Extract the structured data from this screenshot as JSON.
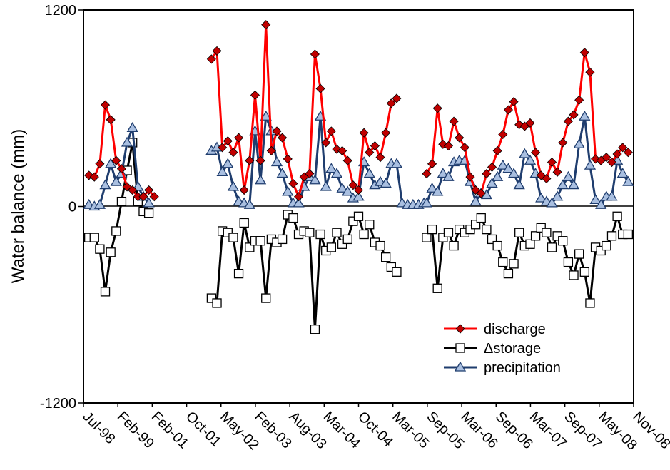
{
  "chart_data": {
    "type": "line",
    "ylabel": "Water balance (mm)",
    "ylim": [
      -1200,
      1200
    ],
    "yticks": [
      "1200",
      "0",
      "-1200"
    ],
    "xticks": [
      "Jul-98",
      "Feb-99",
      "Feb-01",
      "Oct-01",
      "May-02",
      "Feb-03",
      "Aug-03",
      "Mar-04",
      "Oct-04",
      "Mar-05",
      "Sep-05",
      "Mar-06",
      "Sep-06",
      "Mar-07",
      "Sep-07",
      "May-08",
      "Nov-08"
    ],
    "legend_position": "bottom-right",
    "colors": {
      "discharge": "#ff0000",
      "storage": "#000000",
      "precipitation": "#1f3d6e",
      "precip_fill": "#a9bfe0",
      "discharge_fill": "#c00000"
    },
    "series": [
      {
        "name": "discharge",
        "segments": [
          [
            [
              1.0,
              190
            ],
            [
              2.0,
              180
            ],
            [
              3.0,
              260
            ],
            [
              4.0,
              620
            ],
            [
              5.0,
              530
            ],
            [
              6.0,
              280
            ],
            [
              7.0,
              230
            ],
            [
              8.0,
              120
            ],
            [
              9.0,
              100
            ],
            [
              10.0,
              60
            ],
            [
              11.0,
              60
            ],
            [
              12.0,
              100
            ],
            [
              13.0,
              60
            ]
          ],
          [
            [
              23.5,
              900
            ],
            [
              24.5,
              950
            ],
            [
              25.5,
              360
            ],
            [
              26.5,
              400
            ],
            [
              27.5,
              330
            ],
            [
              28.5,
              420
            ],
            [
              29.5,
              100
            ],
            [
              30.5,
              280
            ],
            [
              31.5,
              680
            ],
            [
              32.5,
              280
            ],
            [
              33.5,
              1110
            ],
            [
              34.5,
              340
            ],
            [
              35.5,
              460
            ],
            [
              36.5,
              420
            ],
            [
              37.5,
              290
            ],
            [
              38.5,
              140
            ],
            [
              39.5,
              60
            ],
            [
              40.5,
              180
            ],
            [
              41.5,
              200
            ],
            [
              42.5,
              930
            ],
            [
              43.5,
              720
            ],
            [
              44.5,
              390
            ],
            [
              45.5,
              460
            ],
            [
              46.5,
              350
            ],
            [
              47.5,
              340
            ],
            [
              48.5,
              280
            ],
            [
              49.5,
              130
            ],
            [
              50.5,
              100
            ],
            [
              51.5,
              450
            ],
            [
              52.5,
              330
            ],
            [
              53.5,
              370
            ],
            [
              54.5,
              300
            ],
            [
              55.5,
              450
            ],
            [
              56.5,
              630
            ],
            [
              57.5,
              660
            ]
          ],
          [
            [
              63.0,
              200
            ],
            [
              64.0,
              260
            ],
            [
              65.0,
              600
            ],
            [
              66.0,
              380
            ],
            [
              67.0,
              370
            ],
            [
              68.0,
              520
            ],
            [
              69.0,
              420
            ],
            [
              70.0,
              360
            ],
            [
              71.0,
              180
            ],
            [
              72.0,
              100
            ],
            [
              73.0,
              80
            ],
            [
              74.0,
              200
            ],
            [
              75.0,
              240
            ],
            [
              76.0,
              340
            ],
            [
              77.0,
              440
            ],
            [
              78.0,
              590
            ],
            [
              79.0,
              640
            ],
            [
              80.0,
              500
            ],
            [
              81.0,
              490
            ],
            [
              82.0,
              510
            ],
            [
              83.0,
              330
            ],
            [
              84.0,
              190
            ],
            [
              85.0,
              170
            ],
            [
              86.0,
              270
            ],
            [
              87.0,
              210
            ],
            [
              88.0,
              390
            ],
            [
              89.0,
              520
            ],
            [
              90.0,
              560
            ],
            [
              91.0,
              650
            ],
            [
              92.0,
              940
            ],
            [
              93.0,
              820
            ],
            [
              94.0,
              290
            ],
            [
              95.0,
              280
            ],
            [
              96.0,
              300
            ],
            [
              97.0,
              270
            ],
            [
              98.0,
              320
            ],
            [
              99.0,
              360
            ],
            [
              100.0,
              330
            ]
          ]
        ]
      },
      {
        "name": "Δstorage",
        "segments": [
          [
            [
              1.0,
              -190
            ],
            [
              2.0,
              -190
            ],
            [
              3.0,
              -260
            ],
            [
              4.0,
              -520
            ],
            [
              5.0,
              -280
            ],
            [
              6.0,
              -150
            ],
            [
              7.0,
              30
            ],
            [
              8.0,
              220
            ],
            [
              9.0,
              390
            ],
            [
              10.0,
              30
            ],
            [
              11.0,
              -30
            ],
            [
              12.0,
              -40
            ]
          ],
          [
            [
              23.5,
              -560
            ],
            [
              24.5,
              -590
            ],
            [
              25.5,
              -150
            ],
            [
              26.5,
              -160
            ],
            [
              27.5,
              -190
            ],
            [
              28.5,
              -410
            ],
            [
              29.5,
              -100
            ],
            [
              30.5,
              -250
            ],
            [
              31.5,
              -210
            ],
            [
              32.5,
              -210
            ],
            [
              33.5,
              -560
            ],
            [
              34.5,
              -200
            ],
            [
              35.5,
              -220
            ],
            [
              36.5,
              -200
            ],
            [
              37.5,
              -50
            ],
            [
              38.5,
              -70
            ],
            [
              39.5,
              -170
            ],
            [
              40.5,
              -150
            ],
            [
              41.5,
              -160
            ],
            [
              42.5,
              -750
            ],
            [
              43.5,
              -170
            ],
            [
              44.5,
              -270
            ],
            [
              45.5,
              -250
            ],
            [
              46.5,
              -160
            ],
            [
              47.5,
              -230
            ],
            [
              48.5,
              -200
            ],
            [
              49.5,
              -90
            ],
            [
              50.5,
              -60
            ],
            [
              51.5,
              -170
            ],
            [
              52.5,
              -110
            ],
            [
              53.5,
              -220
            ],
            [
              54.5,
              -240
            ],
            [
              55.5,
              -310
            ],
            [
              56.5,
              -370
            ],
            [
              57.5,
              -400
            ]
          ],
          [
            [
              63.0,
              -190
            ],
            [
              64.0,
              -140
            ],
            [
              65.0,
              -500
            ],
            [
              66.0,
              -190
            ],
            [
              67.0,
              -160
            ],
            [
              68.0,
              -240
            ],
            [
              69.0,
              -140
            ],
            [
              70.0,
              -160
            ],
            [
              71.0,
              -140
            ],
            [
              72.0,
              -110
            ],
            [
              73.0,
              -70
            ],
            [
              74.0,
              -140
            ],
            [
              75.0,
              -200
            ],
            [
              76.0,
              -240
            ],
            [
              77.0,
              -340
            ],
            [
              78.0,
              -410
            ],
            [
              79.0,
              -350
            ],
            [
              80.0,
              -160
            ],
            [
              81.0,
              -240
            ],
            [
              82.0,
              -230
            ],
            [
              83.0,
              -180
            ],
            [
              84.0,
              -130
            ],
            [
              85.0,
              -160
            ],
            [
              86.0,
              -250
            ],
            [
              87.0,
              -180
            ],
            [
              88.0,
              -210
            ],
            [
              89.0,
              -340
            ],
            [
              90.0,
              -420
            ],
            [
              91.0,
              -290
            ],
            [
              92.0,
              -400
            ],
            [
              93.0,
              -590
            ],
            [
              94.0,
              -250
            ],
            [
              95.0,
              -270
            ],
            [
              96.0,
              -240
            ],
            [
              97.0,
              -180
            ],
            [
              98.0,
              -60
            ],
            [
              99.0,
              -170
            ],
            [
              100.0,
              -170
            ]
          ]
        ]
      },
      {
        "name": "precipitation",
        "segments": [
          [
            [
              1.0,
              10
            ],
            [
              2.0,
              0
            ],
            [
              3.0,
              10
            ],
            [
              4.0,
              130
            ],
            [
              5.0,
              260
            ],
            [
              6.0,
              150
            ],
            [
              7.0,
              200
            ],
            [
              8.0,
              390
            ],
            [
              9.0,
              480
            ],
            [
              10.0,
              120
            ],
            [
              11.0,
              60
            ],
            [
              12.0,
              20
            ]
          ],
          [
            [
              23.5,
              340
            ],
            [
              24.5,
              360
            ],
            [
              25.5,
              210
            ],
            [
              26.5,
              260
            ],
            [
              27.5,
              120
            ],
            [
              28.5,
              30
            ],
            [
              29.5,
              20
            ],
            [
              30.5,
              10
            ],
            [
              31.5,
              460
            ],
            [
              32.5,
              160
            ],
            [
              33.5,
              550
            ],
            [
              34.5,
              460
            ],
            [
              35.5,
              270
            ],
            [
              36.5,
              200
            ],
            [
              37.5,
              90
            ],
            [
              38.5,
              20
            ],
            [
              39.5,
              20
            ],
            [
              40.5,
              120
            ],
            [
              41.5,
              180
            ],
            [
              42.5,
              160
            ],
            [
              43.5,
              550
            ],
            [
              44.5,
              120
            ],
            [
              45.5,
              230
            ],
            [
              46.5,
              200
            ],
            [
              47.5,
              110
            ],
            [
              48.5,
              90
            ],
            [
              49.5,
              50
            ],
            [
              50.5,
              60
            ],
            [
              51.5,
              270
            ],
            [
              52.5,
              200
            ],
            [
              53.5,
              130
            ],
            [
              54.5,
              150
            ],
            [
              55.5,
              140
            ],
            [
              56.5,
              260
            ],
            [
              57.5,
              260
            ],
            [
              58.5,
              20
            ],
            [
              59.5,
              10
            ],
            [
              60.5,
              10
            ],
            [
              61.5,
              10
            ],
            [
              62.5,
              20
            ]
          ],
          [
            [
              63.0,
              20
            ],
            [
              64.0,
              110
            ],
            [
              65.0,
              90
            ],
            [
              66.0,
              200
            ],
            [
              67.0,
              180
            ],
            [
              68.0,
              270
            ],
            [
              69.0,
              280
            ],
            [
              70.0,
              280
            ],
            [
              71.0,
              150
            ],
            [
              72.0,
              30
            ],
            [
              73.0,
              80
            ],
            [
              74.0,
              70
            ],
            [
              75.0,
              140
            ],
            [
              76.0,
              180
            ],
            [
              77.0,
              250
            ],
            [
              78.0,
              230
            ],
            [
              79.0,
              200
            ],
            [
              80.0,
              130
            ],
            [
              81.0,
              320
            ],
            [
              82.0,
              280
            ],
            [
              83.0,
              200
            ],
            [
              84.0,
              50
            ],
            [
              85.0,
              30
            ],
            [
              86.0,
              20
            ],
            [
              87.0,
              60
            ],
            [
              88.0,
              130
            ],
            [
              89.0,
              180
            ],
            [
              90.0,
              130
            ],
            [
              91.0,
              380
            ],
            [
              92.0,
              550
            ],
            [
              93.0,
              250
            ],
            [
              94.0,
              40
            ],
            [
              95.0,
              10
            ],
            [
              96.0,
              60
            ],
            [
              97.0,
              60
            ],
            [
              98.0,
              280
            ],
            [
              99.0,
              200
            ],
            [
              100.0,
              150
            ]
          ]
        ]
      }
    ]
  }
}
